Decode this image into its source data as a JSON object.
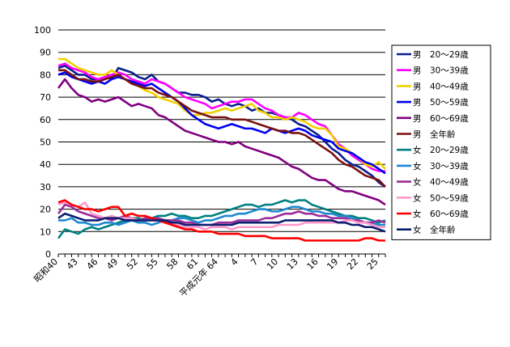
{
  "chart_data": {
    "type": "line",
    "title": "",
    "xlabel": "",
    "ylabel": "",
    "ylim": [
      0,
      100
    ],
    "yticks": [
      0,
      10,
      20,
      30,
      40,
      50,
      60,
      70,
      80,
      90,
      100
    ],
    "grid": "horizontal",
    "legend_position": "right",
    "x": [
      1965,
      1966,
      1967,
      1968,
      1969,
      1970,
      1971,
      1972,
      1973,
      1974,
      1975,
      1976,
      1977,
      1978,
      1979,
      1980,
      1981,
      1982,
      1983,
      1984,
      1985,
      1986,
      1987,
      1988,
      1989,
      1990,
      1991,
      1992,
      1993,
      1994,
      1995,
      1996,
      1997,
      1998,
      1999,
      2000,
      2001,
      2002,
      2003,
      2004,
      2005,
      2006,
      2007,
      2008,
      2009,
      2010,
      2011,
      2012,
      2013,
      2014
    ],
    "xtick_labels": [
      {
        "x": 1965,
        "label": "昭和40"
      },
      {
        "x": 1968,
        "label": "43"
      },
      {
        "x": 1971,
        "label": "46"
      },
      {
        "x": 1974,
        "label": "49"
      },
      {
        "x": 1977,
        "label": "52"
      },
      {
        "x": 1980,
        "label": "55"
      },
      {
        "x": 1983,
        "label": "58"
      },
      {
        "x": 1986,
        "label": "61"
      },
      {
        "x": 1989,
        "label": "平成元年 64"
      },
      {
        "x": 1992,
        "label": "4"
      },
      {
        "x": 1995,
        "label": "7"
      },
      {
        "x": 1998,
        "label": "10"
      },
      {
        "x": 2001,
        "label": "13"
      },
      {
        "x": 2004,
        "label": "16"
      },
      {
        "x": 2007,
        "label": "19"
      },
      {
        "x": 2010,
        "label": "22"
      },
      {
        "x": 2013,
        "label": "25"
      }
    ],
    "series": [
      {
        "name": "男　20～29歳",
        "color": "#0a1f8f",
        "values": [
          83,
          84,
          82,
          80,
          80,
          78,
          78,
          79,
          78,
          83,
          82,
          81,
          79,
          78,
          80,
          77,
          76,
          74,
          72,
          72,
          71,
          71,
          70,
          68,
          69,
          67,
          66,
          67,
          66,
          64,
          65,
          63,
          63,
          62,
          61,
          60,
          58,
          57,
          55,
          53,
          50,
          47,
          45,
          42,
          40,
          39,
          37,
          35,
          32,
          30
        ]
      },
      {
        "name": "男　30～39歳",
        "color": "#ff00ff",
        "values": [
          84,
          85,
          83,
          82,
          81,
          79,
          78,
          79,
          80,
          81,
          80,
          78,
          77,
          76,
          78,
          77,
          76,
          74,
          72,
          70,
          69,
          68,
          67,
          65,
          66,
          67,
          68,
          68,
          69,
          69,
          67,
          65,
          64,
          62,
          61,
          61,
          63,
          62,
          60,
          58,
          57,
          53,
          49,
          47,
          44,
          42,
          40,
          38,
          37,
          37
        ]
      },
      {
        "name": "男　40～49歳",
        "color": "#f0d000",
        "values": [
          87,
          87,
          85,
          83,
          82,
          81,
          80,
          80,
          82,
          80,
          78,
          77,
          75,
          73,
          72,
          70,
          69,
          68,
          67,
          64,
          62,
          62,
          63,
          63,
          64,
          65,
          64,
          65,
          66,
          67,
          64,
          63,
          61,
          61,
          60,
          61,
          60,
          59,
          57,
          56,
          56,
          53,
          48,
          47,
          45,
          43,
          40,
          39,
          41,
          38
        ]
      },
      {
        "name": "男　50～59歳",
        "color": "#0000ee",
        "values": [
          80,
          81,
          79,
          78,
          77,
          76,
          77,
          76,
          78,
          79,
          78,
          77,
          76,
          75,
          76,
          74,
          72,
          70,
          68,
          65,
          62,
          60,
          58,
          57,
          56,
          57,
          58,
          57,
          56,
          56,
          55,
          54,
          56,
          55,
          54,
          55,
          56,
          55,
          53,
          52,
          51,
          50,
          47,
          46,
          45,
          43,
          41,
          40,
          38,
          36
        ]
      },
      {
        "name": "男　60～69歳",
        "color": "#800080",
        "values": [
          74,
          78,
          74,
          71,
          70,
          68,
          69,
          68,
          69,
          70,
          68,
          66,
          67,
          66,
          65,
          62,
          61,
          59,
          57,
          55,
          54,
          53,
          52,
          51,
          50,
          50,
          49,
          50,
          48,
          47,
          46,
          45,
          44,
          43,
          41,
          39,
          38,
          36,
          34,
          33,
          33,
          31,
          29,
          28,
          28,
          27,
          26,
          25,
          24,
          22
        ]
      },
      {
        "name": "男　全年齢",
        "color": "#7b1010",
        "values": [
          82,
          82,
          80,
          78,
          78,
          77,
          77,
          78,
          79,
          80,
          78,
          76,
          75,
          74,
          74,
          72,
          71,
          70,
          68,
          66,
          64,
          63,
          62,
          61,
          61,
          61,
          60,
          60,
          60,
          59,
          58,
          57,
          56,
          55,
          55,
          54,
          54,
          53,
          51,
          49,
          47,
          45,
          42,
          40,
          39,
          37,
          35,
          34,
          33,
          30
        ]
      },
      {
        "name": "女　20～29歳",
        "color": "#008080",
        "values": [
          7,
          11,
          10,
          9,
          11,
          12,
          11,
          12,
          13,
          14,
          15,
          16,
          16,
          15,
          16,
          17,
          17,
          18,
          17,
          17,
          16,
          16,
          17,
          17,
          18,
          19,
          20,
          21,
          22,
          22,
          21,
          22,
          22,
          23,
          24,
          23,
          24,
          24,
          22,
          21,
          20,
          19,
          18,
          17,
          17,
          16,
          16,
          15,
          14,
          15
        ]
      },
      {
        "name": "女　30～39歳",
        "color": "#1e88d0",
        "values": [
          15,
          15,
          16,
          14,
          14,
          13,
          13,
          14,
          14,
          13,
          14,
          15,
          14,
          14,
          13,
          14,
          15,
          15,
          16,
          16,
          15,
          14,
          15,
          15,
          16,
          17,
          17,
          18,
          18,
          19,
          20,
          20,
          19,
          19,
          20,
          21,
          21,
          20,
          19,
          19,
          18,
          18,
          17,
          17,
          16,
          15,
          14,
          14,
          13,
          13
        ]
      },
      {
        "name": "女　40～49歳",
        "color": "#9b2d9b",
        "values": [
          18,
          22,
          21,
          19,
          18,
          17,
          16,
          16,
          15,
          16,
          17,
          16,
          15,
          16,
          16,
          16,
          15,
          15,
          15,
          14,
          14,
          13,
          13,
          13,
          14,
          14,
          14,
          15,
          15,
          15,
          15,
          16,
          16,
          17,
          18,
          18,
          19,
          18,
          18,
          17,
          17,
          16,
          16,
          16,
          15,
          15,
          14,
          14,
          15,
          14
        ]
      },
      {
        "name": "女　50～59歳",
        "color": "#ff99cc",
        "values": [
          22,
          23,
          22,
          21,
          23,
          18,
          17,
          16,
          17,
          16,
          16,
          16,
          15,
          15,
          15,
          15,
          14,
          14,
          13,
          12,
          12,
          12,
          11,
          12,
          12,
          12,
          11,
          12,
          12,
          12,
          12,
          12,
          12,
          13,
          13,
          13,
          13,
          14,
          14,
          14,
          14,
          14,
          14,
          15,
          15,
          14,
          14,
          13,
          12,
          12
        ]
      },
      {
        "name": "女　60～69歳",
        "color": "#ff0000",
        "values": [
          23,
          24,
          22,
          21,
          20,
          20,
          19,
          20,
          21,
          21,
          17,
          18,
          17,
          17,
          16,
          15,
          14,
          13,
          12,
          11,
          11,
          10,
          10,
          10,
          9,
          9,
          9,
          9,
          8,
          8,
          8,
          8,
          7,
          7,
          7,
          7,
          7,
          6,
          6,
          6,
          6,
          6,
          6,
          6,
          6,
          6,
          7,
          7,
          6,
          6
        ]
      },
      {
        "name": "女　全年齢",
        "color": "#0a1f6f",
        "values": [
          16,
          18,
          17,
          16,
          15,
          15,
          15,
          16,
          16,
          16,
          15,
          15,
          15,
          15,
          15,
          15,
          15,
          14,
          14,
          13,
          13,
          13,
          13,
          13,
          13,
          13,
          13,
          14,
          14,
          14,
          14,
          14,
          14,
          14,
          15,
          15,
          15,
          15,
          15,
          15,
          15,
          15,
          14,
          14,
          13,
          13,
          12,
          12,
          11,
          10
        ]
      }
    ]
  }
}
